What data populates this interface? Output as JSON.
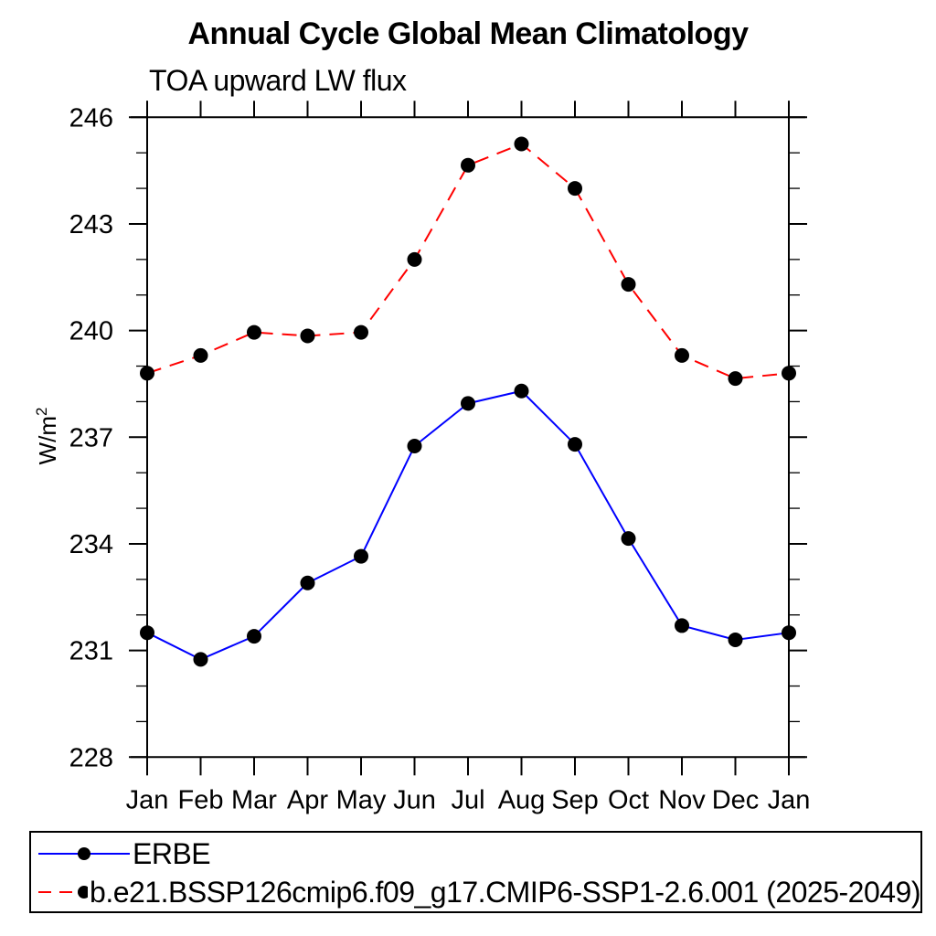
{
  "titles": {
    "main": "Annual Cycle Global Mean Climatology",
    "left": "TOA upward LW flux"
  },
  "chart_data": {
    "type": "line",
    "categories": [
      "Jan",
      "Feb",
      "Mar",
      "Apr",
      "May",
      "Jun",
      "Jul",
      "Aug",
      "Sep",
      "Oct",
      "Nov",
      "Dec",
      "Jan"
    ],
    "series": [
      {
        "name": "ERBE",
        "color": "#0000ff",
        "line_style": "solid",
        "marker": "filled-circle",
        "marker_color": "#000000",
        "values": [
          231.5,
          230.75,
          231.4,
          232.9,
          233.65,
          236.75,
          237.95,
          238.3,
          236.8,
          234.15,
          231.7,
          231.3,
          231.5
        ]
      },
      {
        "name": "b.e21.BSSP126cmip6.f09_g17.CMIP6-SSP1-2.6.001 (2025-2049)",
        "color": "#ff0000",
        "line_style": "dashed",
        "marker": "filled-circle",
        "marker_color": "#000000",
        "values": [
          238.8,
          239.3,
          239.95,
          239.85,
          239.95,
          242.0,
          244.65,
          245.25,
          244.0,
          241.3,
          239.3,
          238.65,
          238.8
        ]
      }
    ],
    "title": "Annual Cycle Global Mean Climatology",
    "subtitle_left": "TOA upward LW flux",
    "xlabel": "",
    "ylabel": {
      "text": "W/m",
      "sup": "2"
    },
    "ylim": [
      228,
      246
    ],
    "yticks_major": [
      228,
      231,
      234,
      237,
      240,
      243,
      246
    ],
    "ytick_minor_step": 1,
    "grid": false,
    "legend_position": "bottom-box"
  }
}
